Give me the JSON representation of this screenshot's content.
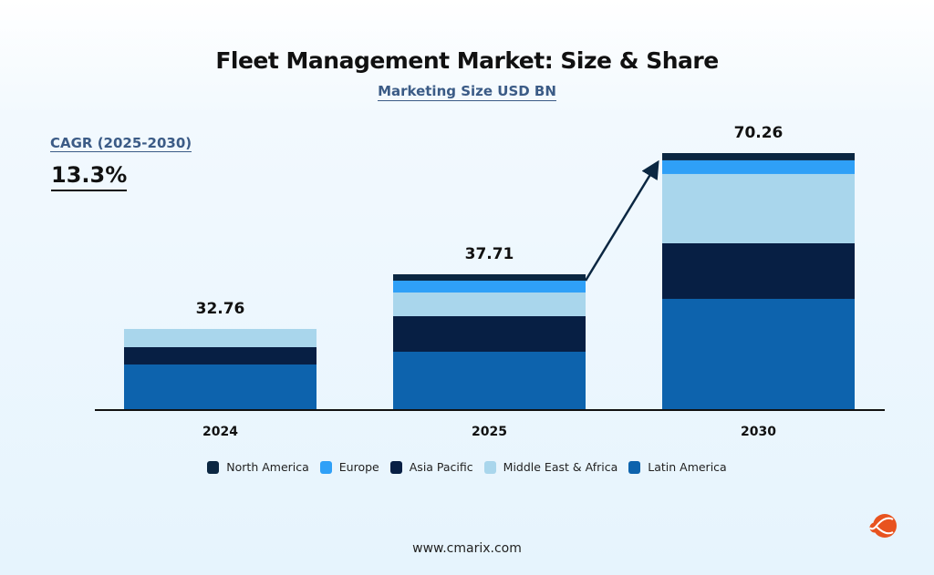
{
  "chart_data": {
    "type": "bar",
    "stacked": true,
    "title": "Fleet Management Market: Size & Share",
    "subtitle": "Marketing Size USD BN",
    "categories": [
      "2024",
      "2025",
      "2030"
    ],
    "totals": [
      "32.76",
      "37.71",
      "70.26"
    ],
    "series": [
      {
        "name": "Latin America",
        "color": "#0d63ad",
        "values": [
          18.4,
          16.2,
          30.4
        ]
      },
      {
        "name": "Asia Pacific",
        "color": "#071f44",
        "values": [
          7.0,
          9.87,
          15.2
        ]
      },
      {
        "name": "Middle East & Africa",
        "color": "#a9d6ec",
        "values": [
          7.36,
          6.58,
          18.94
        ]
      },
      {
        "name": "Europe",
        "color": "#2fa0f7",
        "values": [
          0,
          3.29,
          3.74
        ]
      },
      {
        "name": "North America",
        "color": "#0b2742",
        "values": [
          0,
          1.77,
          1.98
        ]
      }
    ],
    "legend_order": [
      "North America",
      "Europe",
      "Asia Pacific",
      "Middle East & Africa",
      "Latin America"
    ],
    "legend_placement": "bottom",
    "grid": false,
    "annotation": {
      "label": "CAGR (2025-2030)",
      "value": "13.3%",
      "arrow": "2025 to 2030"
    }
  },
  "footer": "www.cmarix.com",
  "logo": "cmarix"
}
